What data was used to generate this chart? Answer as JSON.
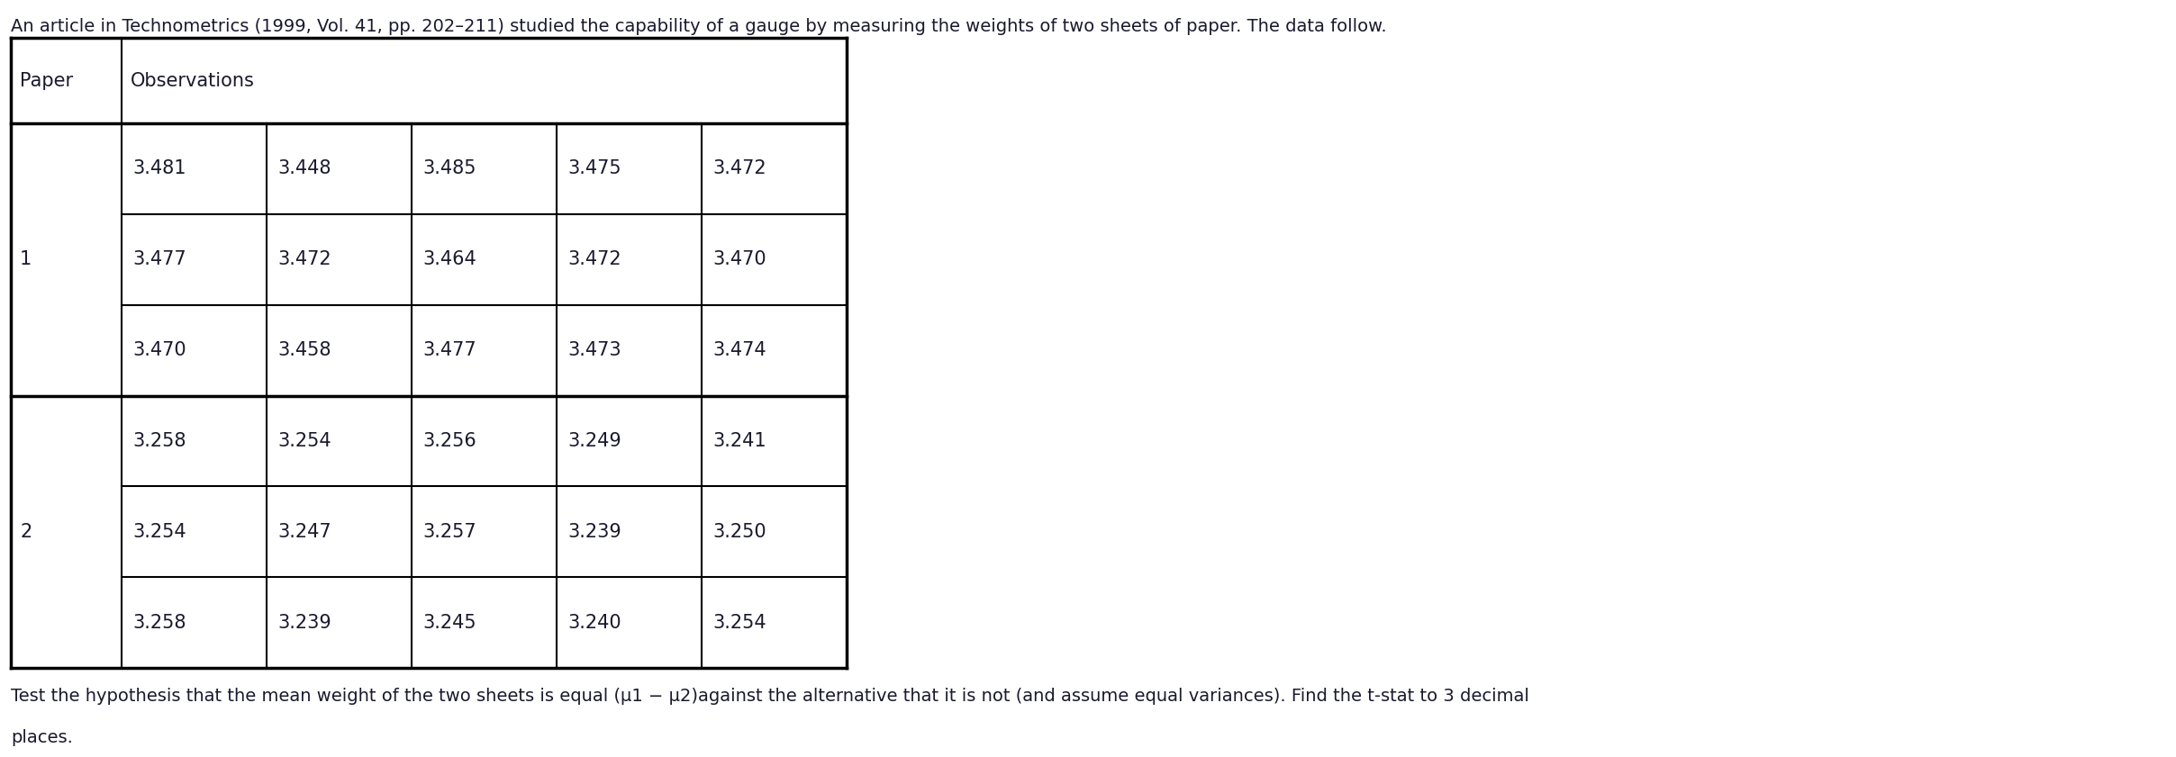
{
  "title": "An article in Technometrics (1999, Vol. 41, pp. 202–211) studied the capability of a gauge by measuring the weights of two sheets of paper. The data follow.",
  "footer_line1": "Test the hypothesis that the mean weight of the two sheets is equal (μ1 − μ2)against the alternative that it is not (and assume equal variances). Find the t-stat to 3 decimal",
  "footer_line2": "places.",
  "paper_col_label": "Paper",
  "obs_col_label": "Observations",
  "paper1_label": "1",
  "paper2_label": "2",
  "paper1_rows": [
    [
      3.481,
      3.448,
      3.485,
      3.475,
      3.472
    ],
    [
      3.477,
      3.472,
      3.464,
      3.472,
      3.47
    ],
    [
      3.47,
      3.458,
      3.477,
      3.473,
      3.474
    ]
  ],
  "paper2_rows": [
    [
      3.258,
      3.254,
      3.256,
      3.249,
      3.241
    ],
    [
      3.254,
      3.247,
      3.257,
      3.239,
      3.25
    ],
    [
      3.258,
      3.239,
      3.245,
      3.24,
      3.254
    ]
  ],
  "bg_color": "#ffffff",
  "text_color": "#1a1a2e",
  "border_color": "#000000",
  "title_font_size": 14,
  "cell_font_size": 15,
  "footer_font_size": 14
}
